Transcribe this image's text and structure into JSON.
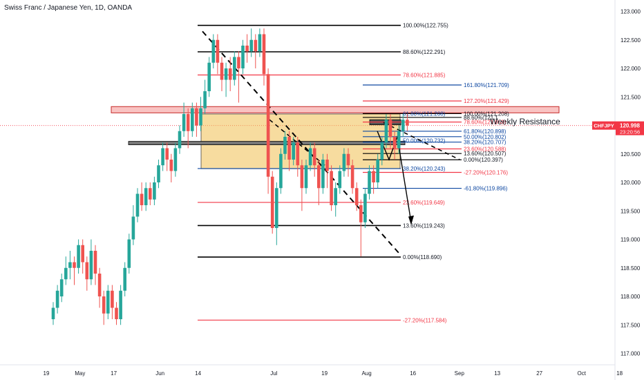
{
  "header": {
    "title": "Swiss Franc / Japanese Yen, 1D, OANDA"
  },
  "annotation": {
    "weekly_resistance": "Weekly Resistance"
  },
  "price_badge": {
    "symbol": "CHFJPY",
    "price": "120.998",
    "countdown": "23:20:56"
  },
  "colors": {
    "bull": "#26a69a",
    "bear": "#ef5350",
    "fib_black": "#000000",
    "fib_red": "#f23645",
    "fib_blue": "#0d47a1",
    "zone": "#f0c050",
    "badge": "#f23645"
  },
  "chart_data": {
    "type": "candlestick",
    "title": "Swiss Franc / Japanese Yen, 1D, OANDA",
    "ylim": [
      116.8,
      123.2
    ],
    "y_ticks": [
      123.0,
      122.5,
      122.0,
      121.5,
      121.0,
      120.5,
      120.0,
      119.5,
      119.0,
      118.5,
      118.0,
      117.5,
      117.0
    ],
    "y_tick_labels": [
      "123.000",
      "122.500",
      "122.000",
      "121.500",
      "121.000",
      "120.500",
      "120.000",
      "119.500",
      "119.000",
      "118.500",
      "118.000",
      "117.500",
      "117.000"
    ],
    "x_ticks": [
      {
        "label": "19",
        "day": 0
      },
      {
        "label": "May",
        "day": 8
      },
      {
        "label": "17",
        "day": 16
      },
      {
        "label": "Jun",
        "day": 27
      },
      {
        "label": "14",
        "day": 36
      },
      {
        "label": "Jul",
        "day": 54
      },
      {
        "label": "19",
        "day": 66
      },
      {
        "label": "Aug",
        "day": 76
      },
      {
        "label": "16",
        "day": 87
      },
      {
        "label": "Sep",
        "day": 98
      },
      {
        "label": "13",
        "day": 107
      },
      {
        "label": "27",
        "day": 117
      },
      {
        "label": "Oct",
        "day": 127
      },
      {
        "label": "18",
        "day": 136
      }
    ],
    "x_range": [
      -9,
      143
    ],
    "candles": [
      [
        117.6,
        117.8,
        117.5,
        117.9
      ],
      [
        117.8,
        118.1,
        117.7,
        118.2
      ],
      [
        118.0,
        118.3,
        117.9,
        118.4
      ],
      [
        118.3,
        118.5,
        118.2,
        118.7
      ],
      [
        118.5,
        118.6,
        118.3,
        118.8
      ],
      [
        118.6,
        118.5,
        118.2,
        118.7
      ],
      [
        118.5,
        118.9,
        118.4,
        119.0
      ],
      [
        118.9,
        118.6,
        118.4,
        119.0
      ],
      [
        118.6,
        118.3,
        118.1,
        118.7
      ],
      [
        118.3,
        118.8,
        118.2,
        119.0
      ],
      [
        118.8,
        118.4,
        118.2,
        118.9
      ],
      [
        118.4,
        118.0,
        117.8,
        118.5
      ],
      [
        118.0,
        117.7,
        117.5,
        118.1
      ],
      [
        117.7,
        118.1,
        117.6,
        118.2
      ],
      [
        118.1,
        117.8,
        117.6,
        118.2
      ],
      [
        117.8,
        117.6,
        117.5,
        117.9
      ],
      [
        117.6,
        118.1,
        117.5,
        118.2
      ],
      [
        118.1,
        118.5,
        118.0,
        118.6
      ],
      [
        118.5,
        119.0,
        118.4,
        119.1
      ],
      [
        119.0,
        119.4,
        118.9,
        119.6
      ],
      [
        119.4,
        119.8,
        119.3,
        119.9
      ],
      [
        119.8,
        119.6,
        119.5,
        120.0
      ],
      [
        119.6,
        119.9,
        119.5,
        120.0
      ],
      [
        119.9,
        119.7,
        119.6,
        120.0
      ],
      [
        119.7,
        120.0,
        119.6,
        120.1
      ],
      [
        120.0,
        120.3,
        119.9,
        120.4
      ],
      [
        120.3,
        120.6,
        120.2,
        120.7
      ],
      [
        120.6,
        120.4,
        120.2,
        120.7
      ],
      [
        120.4,
        120.2,
        120.0,
        120.5
      ],
      [
        120.2,
        120.6,
        120.1,
        120.7
      ],
      [
        120.6,
        120.9,
        120.5,
        121.0
      ],
      [
        120.9,
        121.2,
        120.8,
        121.4
      ],
      [
        121.2,
        120.9,
        120.6,
        121.3
      ],
      [
        120.9,
        121.3,
        120.8,
        121.4
      ],
      [
        121.3,
        121.0,
        120.8,
        121.4
      ],
      [
        121.0,
        121.3,
        120.9,
        121.5
      ],
      [
        121.3,
        121.6,
        121.2,
        121.8
      ],
      [
        121.6,
        122.1,
        121.5,
        122.2
      ],
      [
        122.1,
        122.5,
        122.0,
        122.6
      ],
      [
        122.5,
        122.1,
        121.9,
        122.6
      ],
      [
        122.1,
        121.8,
        121.6,
        122.2
      ],
      [
        121.8,
        122.0,
        121.5,
        122.1
      ],
      [
        122.0,
        121.8,
        121.6,
        122.2
      ],
      [
        121.8,
        122.2,
        121.7,
        122.3
      ],
      [
        122.2,
        122.0,
        121.4,
        122.3
      ],
      [
        122.0,
        122.4,
        121.9,
        122.5
      ],
      [
        122.4,
        122.3,
        122.1,
        122.6
      ],
      [
        122.3,
        122.5,
        122.2,
        122.7
      ],
      [
        122.5,
        122.3,
        122.0,
        122.6
      ],
      [
        122.3,
        122.6,
        122.2,
        122.7
      ],
      [
        122.6,
        121.9,
        121.7,
        122.7
      ],
      [
        121.9,
        120.1,
        119.8,
        122.0
      ],
      [
        120.1,
        119.2,
        119.1,
        120.2
      ],
      [
        119.2,
        119.9,
        118.9,
        120.0
      ],
      [
        119.9,
        120.5,
        119.8,
        120.6
      ],
      [
        120.5,
        120.8,
        120.4,
        120.9
      ],
      [
        120.8,
        120.4,
        120.2,
        120.9
      ],
      [
        120.4,
        120.7,
        120.3,
        120.8
      ],
      [
        120.7,
        120.3,
        120.1,
        120.8
      ],
      [
        120.3,
        119.9,
        119.5,
        120.4
      ],
      [
        119.9,
        120.3,
        119.8,
        120.4
      ],
      [
        120.3,
        120.6,
        120.2,
        120.7
      ],
      [
        120.6,
        120.3,
        120.1,
        120.7
      ],
      [
        120.3,
        119.9,
        119.6,
        120.4
      ],
      [
        119.9,
        120.4,
        119.8,
        120.5
      ],
      [
        120.4,
        120.2,
        119.9,
        120.5
      ],
      [
        120.2,
        119.6,
        119.5,
        120.3
      ],
      [
        119.6,
        119.9,
        119.4,
        120.0
      ],
      [
        119.9,
        120.2,
        119.8,
        120.3
      ],
      [
        120.2,
        120.5,
        120.1,
        120.6
      ],
      [
        120.5,
        120.3,
        120.1,
        120.6
      ],
      [
        120.3,
        119.9,
        119.8,
        120.4
      ],
      [
        119.9,
        119.6,
        119.5,
        120.0
      ],
      [
        119.6,
        119.3,
        118.7,
        119.7
      ],
      [
        119.3,
        119.8,
        119.2,
        119.9
      ],
      [
        119.8,
        120.2,
        119.7,
        120.3
      ],
      [
        120.2,
        120.0,
        119.8,
        120.3
      ],
      [
        120.0,
        120.4,
        119.9,
        120.5
      ],
      [
        120.4,
        120.7,
        120.3,
        120.8
      ],
      [
        120.7,
        121.1,
        120.6,
        121.2
      ],
      [
        121.1,
        120.8,
        120.6,
        121.2
      ],
      [
        120.8,
        120.6,
        120.4,
        120.9
      ],
      [
        120.6,
        120.9,
        120.5,
        121.0
      ],
      [
        120.9,
        121.1,
        120.8,
        121.2
      ],
      [
        121.1,
        120.998,
        120.9,
        121.2
      ]
    ],
    "fib_left": [
      {
        "level": "100.00%",
        "value": 122.755,
        "label": "100.00%(122.755)",
        "color": "black"
      },
      {
        "level": "88.60%",
        "value": 122.291,
        "label": "88.60%(122.291)",
        "color": "black"
      },
      {
        "level": "78.60%",
        "value": 121.885,
        "label": "78.60%(121.885)",
        "color": "red"
      },
      {
        "level": "38.20%",
        "value": 120.243,
        "label": "38.20%(120.243)",
        "color": "blue"
      },
      {
        "level": "23.60%",
        "value": 119.649,
        "label": "23.60%(119.649)",
        "color": "red"
      },
      {
        "level": "13.60%",
        "value": 119.243,
        "label": "13.60%(119.243)",
        "color": "black"
      },
      {
        "level": "0.00%",
        "value": 118.69,
        "label": "0.00%(118.690)",
        "color": "black"
      },
      {
        "level": "-27.20%",
        "value": 117.584,
        "label": "-27.20%(117.584)",
        "color": "red"
      }
    ],
    "fib_right": [
      {
        "level": "161.80%",
        "value": 121.709,
        "label": "161.80%(121.709)",
        "color": "blue"
      },
      {
        "level": "127.20%",
        "value": 121.429,
        "label": "127.20%(121.429)",
        "color": "red"
      },
      {
        "level": "100.00%",
        "value": 121.208,
        "label": "100.00%(121.208)",
        "color": "black"
      },
      {
        "level": "88.60%",
        "value": 121.14,
        "label": "88.60%(121.1",
        "color": "black"
      },
      {
        "level": "78.60%",
        "value": 121.059,
        "label": "78.60%(121.059)",
        "color": "red"
      },
      {
        "level": "61.80%",
        "value": 120.898,
        "label": "61.80%(120.898)",
        "color": "blue"
      },
      {
        "level": "50.00%",
        "value": 120.802,
        "label": "50.00%(120.802)",
        "color": "blue"
      },
      {
        "level": "38.20%",
        "value": 120.707,
        "label": "38.20%(120.707)",
        "color": "blue"
      },
      {
        "level": "23.60%",
        "value": 120.588,
        "label": "23.60%(120.588)",
        "color": "red"
      },
      {
        "level": "13.60%",
        "value": 120.507,
        "label": "13.60%(120.507)",
        "color": "black"
      },
      {
        "level": "0.00%",
        "value": 120.397,
        "label": "0.00%(120.397)",
        "color": "black"
      },
      {
        "level": "-27.20%",
        "value": 120.176,
        "label": "-27.20%(120.176)",
        "color": "red"
      },
      {
        "level": "-61.80%",
        "value": 119.896,
        "label": "-61.80%(119.896)",
        "color": "blue"
      }
    ],
    "fib_mid_labels": [
      {
        "text": "61.80%(121.208)",
        "value": 121.208
      },
      {
        "text": "50.00%(120.732)",
        "value": 120.732
      }
    ],
    "current_price": 120.998
  }
}
